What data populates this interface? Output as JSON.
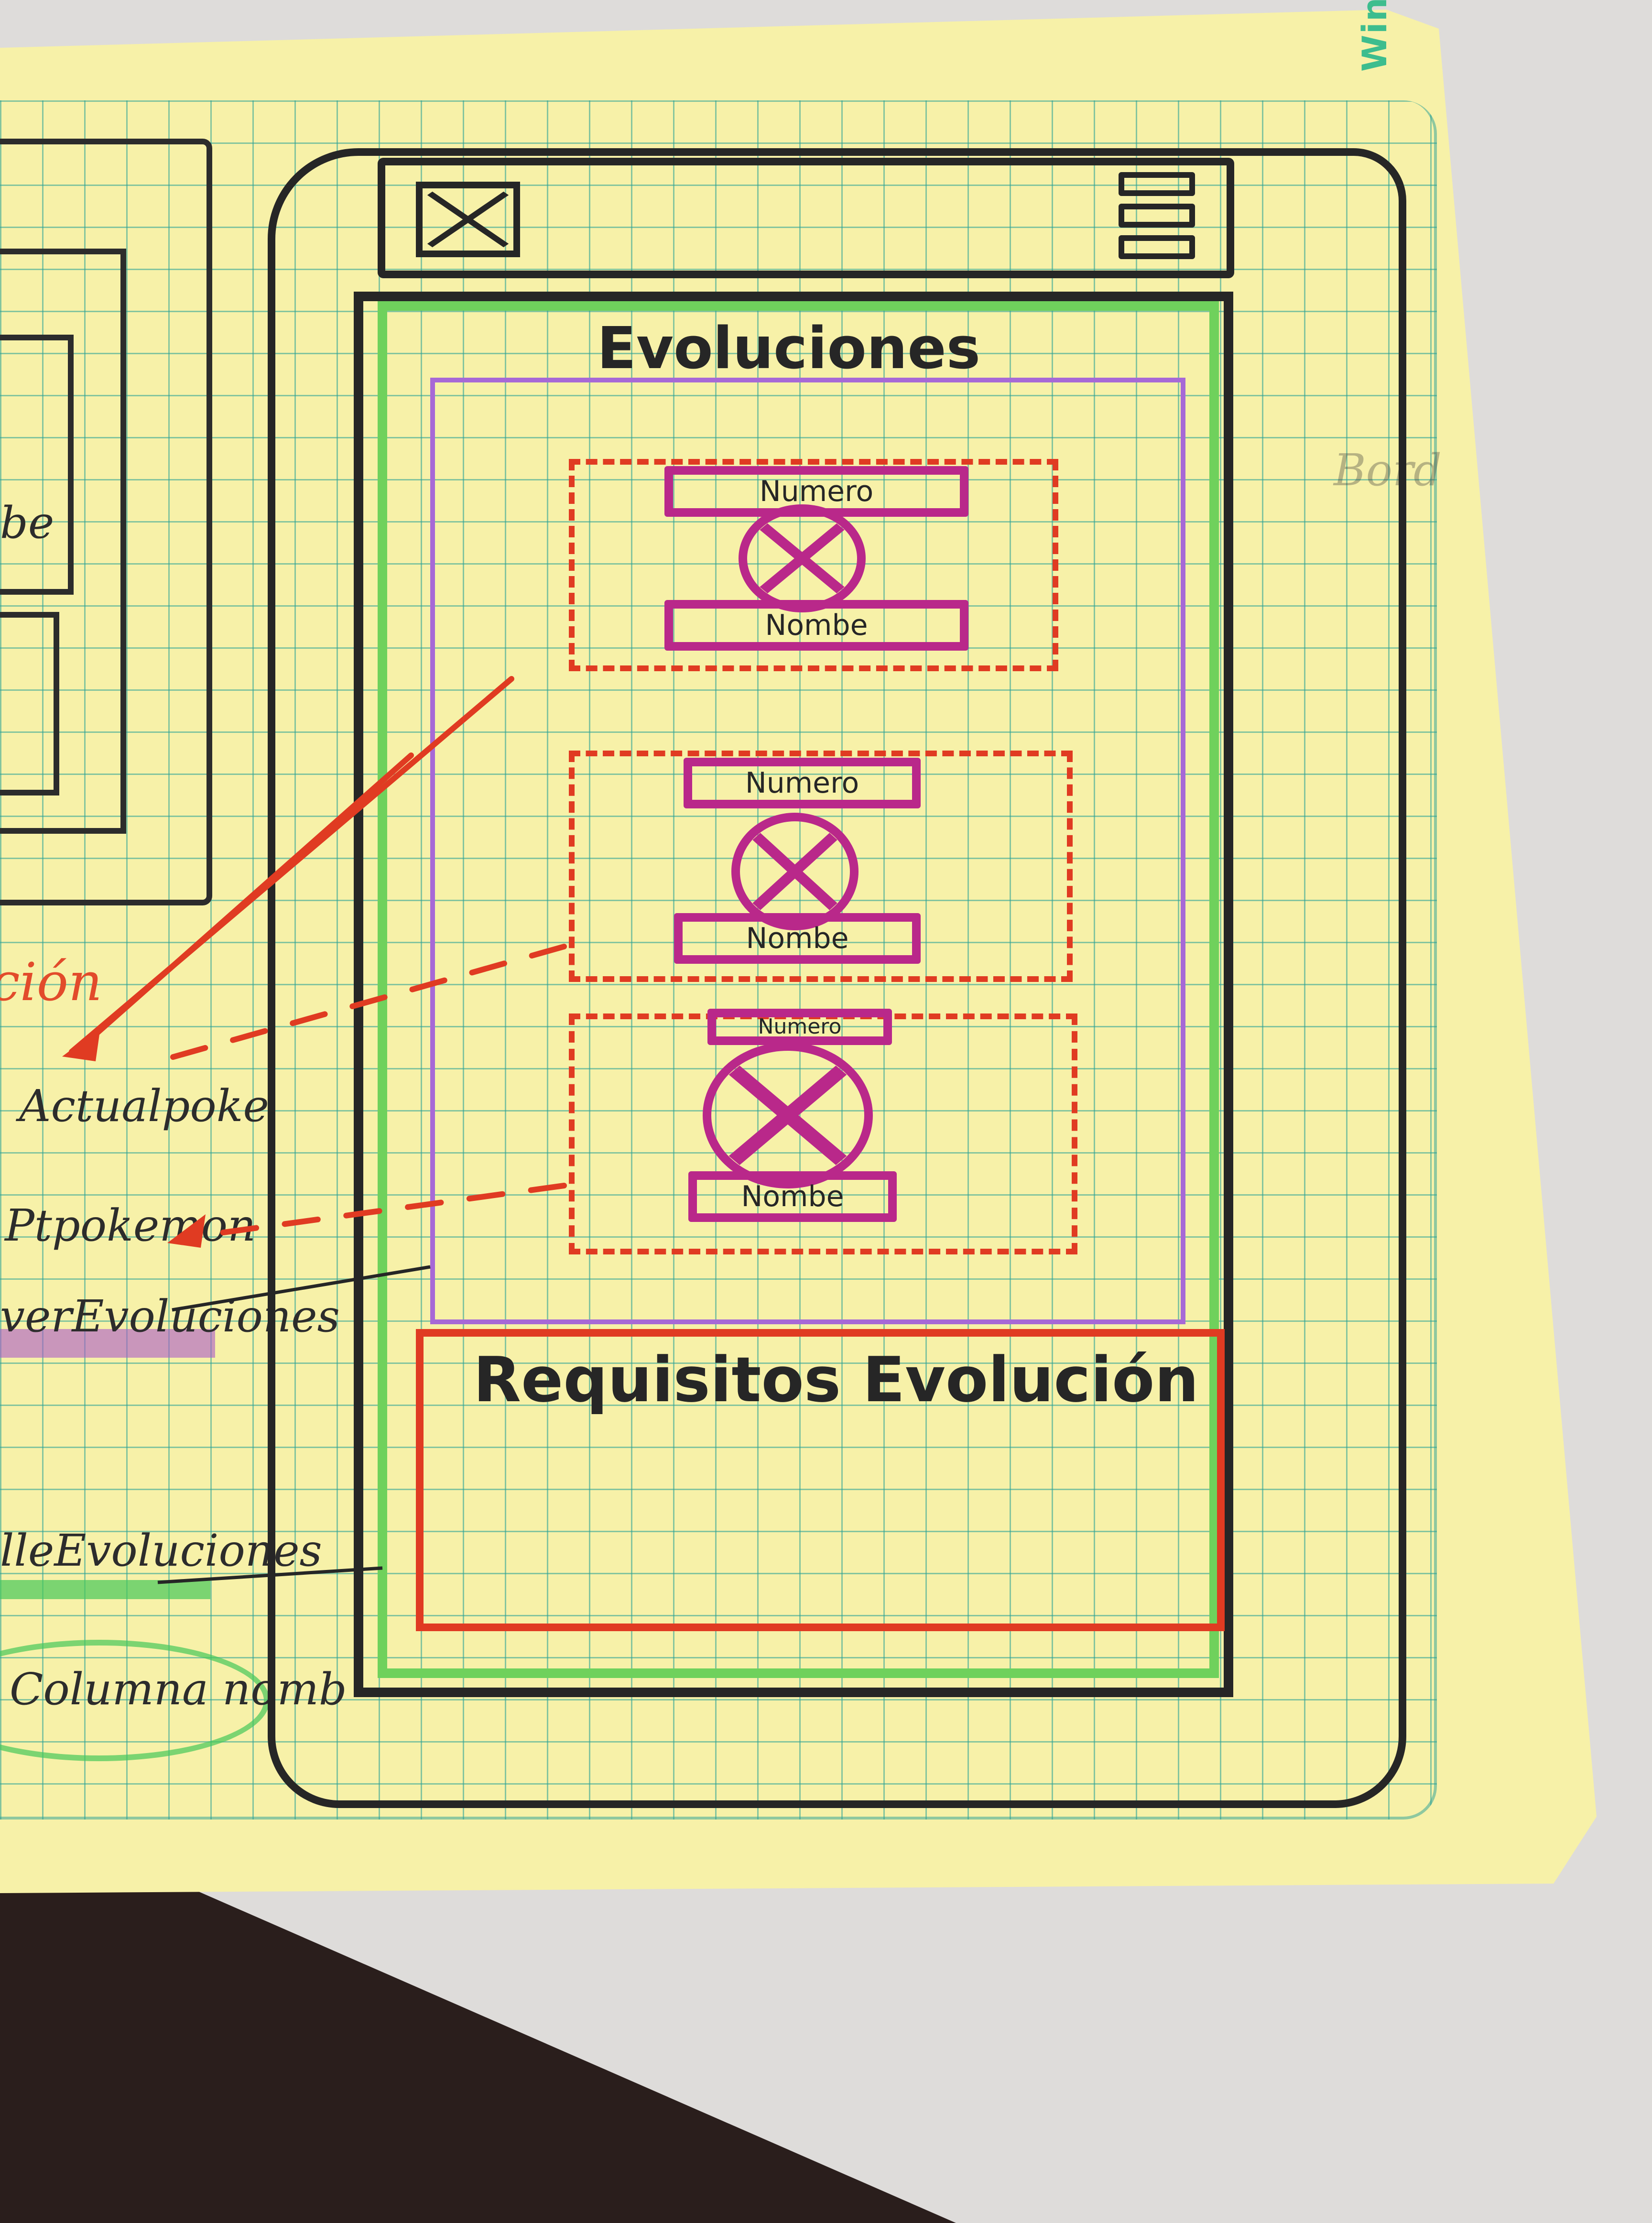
{
  "paper_brand": "Wingo®",
  "screen": {
    "title": "Evoluciones",
    "cards": [
      {
        "number_label": "Numero",
        "name_label": "Nombe"
      },
      {
        "number_label": "Numero",
        "name_label": "Nombe"
      },
      {
        "number_label": "Numero",
        "name_label": "Nombe"
      }
    ],
    "requirements_title": "Requisitos Evolución"
  },
  "side_notes": {
    "partial_label_1": "be",
    "partial_label_2": "ción",
    "actual_pokemon": "Actualpoke",
    "next_pokemon": "Ptpokemon",
    "evolutions": "verEvoluciones",
    "evolution_detail": "lleEvoluciones",
    "columns": "Columna nomb",
    "right_note": "Bord"
  },
  "colors": {
    "frame": "#262626",
    "content_border": "#6fd15c",
    "list_border": "#a769d6",
    "card_border": "#e03b22",
    "element_border": "#b9288a"
  }
}
